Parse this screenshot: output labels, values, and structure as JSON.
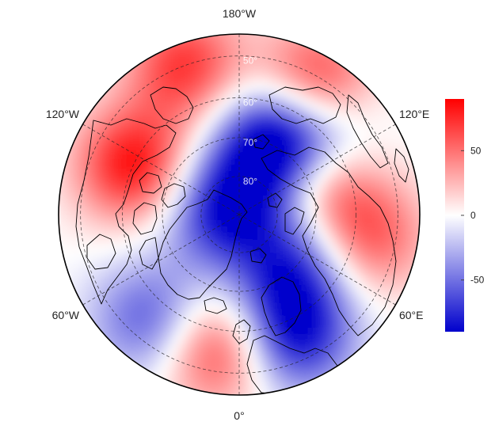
{
  "map": {
    "projection": "north-polar-stereographic",
    "longitude_labels": [
      {
        "text": "180°W",
        "lon": 180
      },
      {
        "text": "120°E",
        "lon": 120
      },
      {
        "text": "60°E",
        "lon": 60
      },
      {
        "text": "0°",
        "lon": 0
      },
      {
        "text": "60°W",
        "lon": -60
      },
      {
        "text": "120°W",
        "lon": -120
      }
    ],
    "latitude_labels": [
      {
        "text": "50°",
        "lat": 50
      },
      {
        "text": "60°",
        "lat": 60
      },
      {
        "text": "70°",
        "lat": 70
      },
      {
        "text": "80°",
        "lat": 80
      }
    ],
    "graticule": {
      "meridian_step_deg": 60,
      "parallels_deg": [
        50,
        60,
        70,
        80
      ],
      "style": "dashed"
    },
    "field": {
      "colormap": [
        "#0000cc",
        "#ffffff",
        "#ff0000"
      ],
      "anomaly_centers": [
        {
          "lat": 68,
          "lon": 155,
          "value": -85
        },
        {
          "lat": 52,
          "lon": 150,
          "value": 80
        },
        {
          "lat": 85,
          "lon": -100,
          "value": -75
        },
        {
          "lat": 60,
          "lon": -115,
          "value": 85
        },
        {
          "lat": 55,
          "lon": -40,
          "value": -60
        },
        {
          "lat": 55,
          "lon": -10,
          "value": 70
        },
        {
          "lat": 56,
          "lon": 25,
          "value": -80
        },
        {
          "lat": 70,
          "lon": 40,
          "value": -55
        },
        {
          "lat": 72,
          "lon": 75,
          "value": -30
        },
        {
          "lat": 68,
          "lon": 105,
          "value": 65
        },
        {
          "lat": 56,
          "lon": 80,
          "value": 55
        },
        {
          "lat": 60,
          "lon": 135,
          "value": -40
        },
        {
          "lat": 50,
          "lon": -160,
          "value": 70
        },
        {
          "lat": 78,
          "lon": 150,
          "value": -30
        }
      ]
    }
  },
  "colorbar": {
    "min": -90,
    "max": 90,
    "ticks": [
      {
        "value": 50,
        "label": "50"
      },
      {
        "value": 0,
        "label": "0"
      },
      {
        "value": -50,
        "label": "-50"
      }
    ],
    "colors": {
      "low": "#0000cc",
      "mid": "#ffffff",
      "high": "#ff0000"
    }
  }
}
